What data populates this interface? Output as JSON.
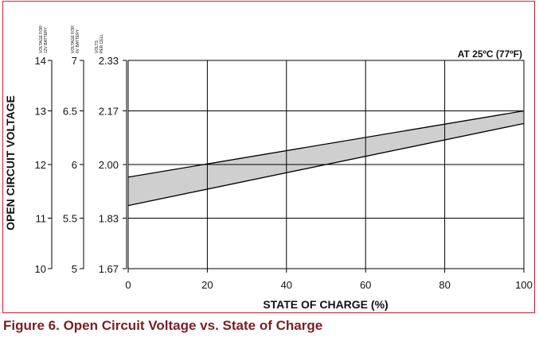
{
  "figure_caption": "Figure 6.  Open Circuit Voltage vs. State of Charge",
  "colors": {
    "frame": "#d81e2e",
    "caption": "#7a1f24",
    "band": "#cfcfcf",
    "grid": "#000000"
  },
  "chart_data": {
    "type": "area",
    "title": "",
    "annotation": "AT 25ºC (77ºF)",
    "xlabel": "STATE OF CHARGE (%)",
    "ylabel": "OPEN CIRCUIT VOLTAGE",
    "x_ticks": [
      "0",
      "20",
      "40",
      "60",
      "80",
      "100"
    ],
    "xlim": [
      0,
      100
    ],
    "ylim_volts_per_cell": [
      1.67,
      2.33
    ],
    "grid": true,
    "y_axes": [
      {
        "header_line1": "VOLTAGE FOR",
        "header_line2": "12V BATTERY",
        "ticks": [
          "14",
          "13",
          "12",
          "11",
          "10"
        ]
      },
      {
        "header_line1": "VOLTAGE FOR",
        "header_line2": "6V BATTERY",
        "ticks": [
          "7",
          "6.5",
          "6",
          "5.5",
          "5"
        ]
      },
      {
        "header_line1": "VOLTS",
        "header_line2": "PER CELL",
        "ticks": [
          "2.33",
          "2.17",
          "2.00",
          "1.83",
          "1.67"
        ]
      }
    ],
    "y_tick_values_volts_per_cell": [
      2.33,
      2.17,
      2.0,
      1.83,
      1.67
    ],
    "series": [
      {
        "x": [
          0,
          100
        ],
        "volts_per_cell": [
          1.96,
          2.17
        ]
      },
      {
        "x": [
          0,
          100
        ],
        "volts_per_cell": [
          1.87,
          2.13
        ]
      }
    ]
  }
}
